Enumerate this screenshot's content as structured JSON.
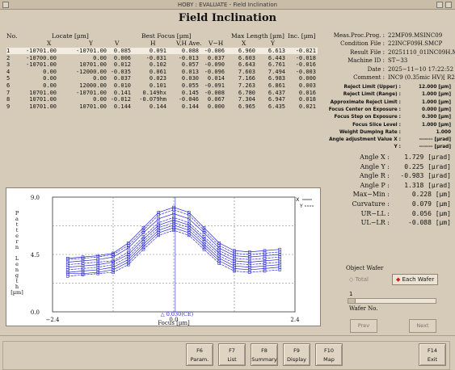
{
  "window": {
    "title": "HOBY : EVALUATE - Field Inclination"
  },
  "page_title": "Field Inclination",
  "table": {
    "headers": {
      "no": "No.",
      "locate": "Locate [µm]",
      "best_focus": "Best Focus [µm]",
      "max_length": "Max Length [µm]",
      "inc": "Inc. [µm]",
      "x": "X",
      "y": "Y",
      "v": "V",
      "h": "H",
      "vh_ave": "V,H Ave.",
      "v_h": "V−H"
    },
    "rows": [
      {
        "no": "1",
        "x": "-10701.00",
        "y": "-10701.00",
        "v": "0.085",
        "h": "0.091",
        "ave": "0.088",
        "vh": "-0.006",
        "mx": "6.960",
        "my": "6.613",
        "inc": "-0.021"
      },
      {
        "no": "2",
        "x": "-10700.00",
        "y": "0.00",
        "v": "0.006",
        "h": "-0.031",
        "ave": "-0.013",
        "vh": "0.037",
        "mx": "6.603",
        "my": "6.443",
        "inc": "-0.018"
      },
      {
        "no": "3",
        "x": "-10701.00",
        "y": "10701.00",
        "v": "0.012",
        "h": "0.102",
        "ave": "0.057",
        "vh": "-0.090",
        "mx": "6.643",
        "my": "6.761",
        "inc": "-0.016"
      },
      {
        "no": "4",
        "x": "0.00",
        "y": "-12000.00",
        "v": "-0.035",
        "h": "0.061",
        "ave": "0.013",
        "vh": "-0.096",
        "mx": "7.603",
        "my": "7.494",
        "inc": "-0.003"
      },
      {
        "no": "5",
        "x": "0.00",
        "y": "0.00",
        "v": "0.037",
        "h": "0.023",
        "ave": "0.030",
        "vh": "0.014",
        "mx": "7.166",
        "my": "6.983",
        "inc": "0.000"
      },
      {
        "no": "6",
        "x": "0.00",
        "y": "12000.00",
        "v": "0.010",
        "h": "0.101",
        "ave": "0.055",
        "vh": "-0.091",
        "mx": "7.263",
        "my": "6.861",
        "inc": "0.003"
      },
      {
        "no": "7",
        "x": "10701.00",
        "y": "-10701.00",
        "v": "0.141",
        "h": "0.149hx",
        "ave": "0.145",
        "vh": "-0.008",
        "mx": "6.780",
        "my": "6.437",
        "inc": "0.016"
      },
      {
        "no": "8",
        "x": "10701.00",
        "y": "0.00",
        "v": "-0.012",
        "h": "-0.079hm",
        "ave": "-0.046",
        "vh": "0.067",
        "mx": "7.304",
        "my": "6.947",
        "inc": "0.018"
      },
      {
        "no": "9",
        "x": "10701.00",
        "y": "10701.00",
        "v": "0.144",
        "h": "0.144",
        "ave": "0.144",
        "vh": "0.000",
        "mx": "6.965",
        "my": "6.435",
        "inc": "0.021"
      }
    ]
  },
  "info": [
    {
      "label": "Meas.Proc.Prog. :",
      "value": "22MF09.MSINC09"
    },
    {
      "label": "Condition File :",
      "value": "22INCF09H.SMCP"
    },
    {
      "label": "Result File :",
      "value": "20251110_01INC09H.M"
    },
    {
      "label": "Machine ID :",
      "value": "ST−33"
    },
    {
      "label": "Date :",
      "value": "2025−11−10 17:22:52"
    },
    {
      "label": "Comment :",
      "value": "INC9 (0.35mic HV)[ R2"
    }
  ],
  "params": [
    {
      "label": "Reject Limit (Upper) :",
      "value": "12.000 [µm]"
    },
    {
      "label": "Reject Limit (Range) :",
      "value": "1.000 [µm]"
    },
    {
      "label": "Approximate Reject Limit :",
      "value": "1.000 [µm]"
    },
    {
      "label": "Focus Center on Exposure :",
      "value": "0.000 [µm]"
    },
    {
      "label": "Focus Step on Exposure :",
      "value": "0.300 [µm]"
    },
    {
      "label": "Focus Slice Level :",
      "value": "1.000 [µm]"
    },
    {
      "label": "Weight Dumping Rate :",
      "value": "1.000"
    },
    {
      "label": "Angle adjustment Value X :",
      "value": "------- [µrad]"
    },
    {
      "label": "Y :",
      "value": "------- [µrad]"
    }
  ],
  "angles": [
    {
      "label": "Angle X :",
      "value": "1.729 [µrad]"
    },
    {
      "label": "Angle Y :",
      "value": "0.225 [µrad]"
    },
    {
      "label": "Angle R :",
      "value": "-0.983 [µrad]"
    },
    {
      "label": "Angle P :",
      "value": "1.318 [µrad]"
    },
    {
      "label": "Max−Min :",
      "value": "0.228 [µm]"
    },
    {
      "label": "Curvature :",
      "value": "0.079 [µm]"
    },
    {
      "label": "UR−LL :",
      "value": "0.056 [µm]"
    },
    {
      "label": "UL−LR :",
      "value": "-0.088 [µm]"
    }
  ],
  "object_wafer": {
    "label": "Object Wafer",
    "total_label": "Total",
    "each_label": "Each Wafer",
    "slider_value": "1",
    "wafer_no_label": "Wafer No.",
    "prev_label": "Prev",
    "next_label": "Next"
  },
  "buttons": {
    "f6_param": {
      "key": "F6",
      "label": "Param."
    },
    "f7_list": {
      "key": "F7",
      "label": "List"
    },
    "f8_summary": {
      "key": "F8",
      "label": "Summary"
    },
    "f9_display": {
      "key": "F9",
      "label": "Display"
    },
    "f10_map": {
      "key": "F10",
      "label": "Map"
    },
    "f14_exit": {
      "key": "F14",
      "label": "Exit"
    }
  },
  "chart_data": {
    "type": "line",
    "ylabel": "Pattern Length [µm]",
    "ylabel_letters": [
      "P",
      "a",
      "t",
      "t",
      "e",
      "r",
      "n",
      "",
      "L",
      "e",
      "n",
      "g",
      "t",
      "h",
      "[µm]"
    ],
    "xlabel": "Focus [µm]",
    "xlim": [
      -2.4,
      2.4
    ],
    "ylim": [
      0.0,
      9.0
    ],
    "xtick_labels": [
      "−2.4",
      "0.0",
      "2.4"
    ],
    "ytick_labels": [
      "9.0",
      "4.5",
      "0.0"
    ],
    "center_annotation": "0.030(CE)",
    "center_value": 0.03,
    "legend": {
      "x_label": "X",
      "y_label": "Y",
      "placement": "top-right"
    },
    "grid": true,
    "x": [
      -2.1,
      -1.8,
      -1.5,
      -1.2,
      -0.9,
      -0.6,
      -0.3,
      0.0,
      0.3,
      0.6,
      0.9,
      1.2,
      1.5,
      1.8,
      2.1
    ],
    "series": [
      {
        "values": [
          3.9,
          4.0,
          4.1,
          4.3,
          5.0,
          6.2,
          7.3,
          7.7,
          7.3,
          6.2,
          5.0,
          4.4,
          4.3,
          4.4,
          4.5
        ]
      },
      {
        "values": [
          3.7,
          3.8,
          3.9,
          4.0,
          4.7,
          5.9,
          7.0,
          7.4,
          7.0,
          5.9,
          4.8,
          4.2,
          4.1,
          4.2,
          4.3
        ]
      },
      {
        "values": [
          3.5,
          3.6,
          3.7,
          3.9,
          4.5,
          5.7,
          6.8,
          7.2,
          6.8,
          5.7,
          4.6,
          4.0,
          3.9,
          4.0,
          4.1
        ]
      },
      {
        "values": [
          3.3,
          3.4,
          3.5,
          3.7,
          4.3,
          5.5,
          6.6,
          7.0,
          6.6,
          5.5,
          4.4,
          3.8,
          3.7,
          3.8,
          3.9
        ]
      },
      {
        "values": [
          3.1,
          3.2,
          3.3,
          3.5,
          4.1,
          5.3,
          6.4,
          6.8,
          6.4,
          5.3,
          4.2,
          3.6,
          3.5,
          3.6,
          3.7
        ]
      },
      {
        "values": [
          4.1,
          4.2,
          4.3,
          4.5,
          5.2,
          6.4,
          7.6,
          8.0,
          7.6,
          6.4,
          5.2,
          4.6,
          4.5,
          4.6,
          4.7
        ]
      },
      {
        "values": [
          3.0,
          3.0,
          3.1,
          3.3,
          3.9,
          5.1,
          6.2,
          6.6,
          6.2,
          5.1,
          4.0,
          3.4,
          3.3,
          3.4,
          3.5
        ]
      },
      {
        "values": [
          2.8,
          2.9,
          3.0,
          3.1,
          3.7,
          4.9,
          6.0,
          6.4,
          6.0,
          4.9,
          3.8,
          3.2,
          3.1,
          3.2,
          3.3
        ]
      },
      {
        "values": [
          4.2,
          4.3,
          4.4,
          4.6,
          5.4,
          6.6,
          7.8,
          8.2,
          7.8,
          6.6,
          5.4,
          4.8,
          4.7,
          4.8,
          4.9
        ]
      }
    ],
    "color": "#2b2bcf"
  }
}
